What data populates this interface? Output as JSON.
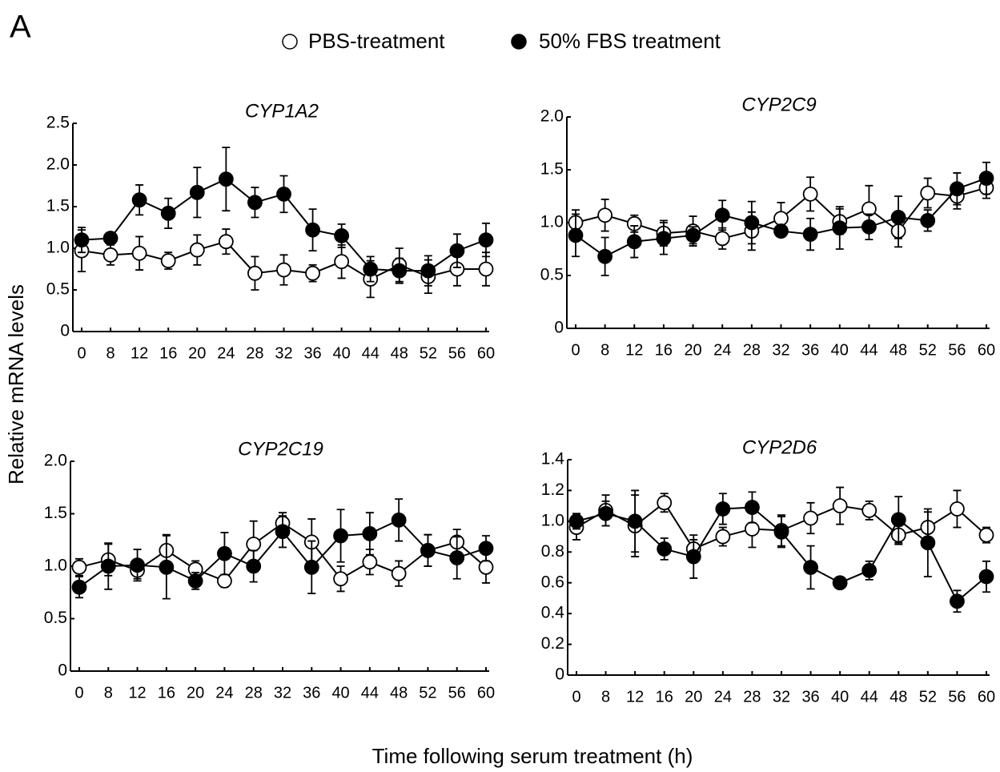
{
  "panel_label": "A",
  "y_label": "Relative mRNA levels",
  "x_label": "Time following serum treatment (h)",
  "chart_data": [
    {
      "type": "line",
      "title": "CYP1A2",
      "categories": [
        "0",
        "8",
        "12",
        "16",
        "20",
        "24",
        "28",
        "32",
        "36",
        "40",
        "44",
        "48",
        "52",
        "56",
        "60"
      ],
      "ylim": [
        0,
        2.5
      ],
      "yticks": [
        0,
        0.5,
        {
          "value": 1,
          "label": "1.0"
        },
        1.5,
        {
          "value": 2,
          "label": "2.0"
        },
        2.5
      ],
      "series": [
        {
          "name": "PBS-treatment",
          "color": "#ffffff",
          "values": [
            0.97,
            0.92,
            0.94,
            0.85,
            0.98,
            1.08,
            0.7,
            0.74,
            0.7,
            0.84,
            0.63,
            0.8,
            0.66,
            0.75,
            0.75
          ],
          "errors": [
            0.25,
            0.12,
            0.2,
            0.1,
            0.18,
            0.15,
            0.2,
            0.18,
            0.1,
            0.2,
            0.22,
            0.2,
            0.2,
            0.2,
            0.2
          ]
        },
        {
          "name": "50% FBS treatment",
          "color": "#000000",
          "values": [
            1.1,
            1.12,
            1.58,
            1.42,
            1.67,
            1.83,
            1.55,
            1.65,
            1.22,
            1.15,
            0.75,
            0.73,
            0.73,
            0.97,
            1.1
          ],
          "errors": [
            0.15,
            0.05,
            0.18,
            0.18,
            0.3,
            0.38,
            0.18,
            0.22,
            0.25,
            0.14,
            0.15,
            0.15,
            0.18,
            0.2,
            0.2
          ]
        }
      ]
    },
    {
      "type": "line",
      "title": "CYP2C9",
      "categories": [
        "0",
        "8",
        "12",
        "16",
        "20",
        "24",
        "28",
        "32",
        "36",
        "40",
        "44",
        "48",
        "52",
        "56",
        "60"
      ],
      "ylim": [
        0,
        2.0
      ],
      "yticks": [
        0,
        0.5,
        {
          "value": 1,
          "label": "1.0"
        },
        1.5,
        {
          "value": 2,
          "label": "2.0"
        }
      ],
      "series": [
        {
          "color": "#ffffff",
          "values": [
            1.0,
            1.07,
            0.99,
            0.9,
            0.92,
            0.85,
            0.92,
            1.04,
            1.27,
            1.01,
            1.13,
            0.92,
            1.28,
            1.25,
            1.33
          ],
          "errors": [
            0.12,
            0.15,
            0.08,
            0.12,
            0.14,
            0.1,
            0.18,
            0.15,
            0.16,
            0.12,
            0.22,
            0.15,
            0.14,
            0.12,
            0.1
          ]
        },
        {
          "color": "#000000",
          "values": [
            0.88,
            0.68,
            0.82,
            0.85,
            0.88,
            1.07,
            1.0,
            0.92,
            0.89,
            0.95,
            0.96,
            1.05,
            1.02,
            1.32,
            1.42
          ],
          "errors": [
            0.2,
            0.18,
            0.15,
            0.15,
            0.08,
            0.14,
            0.2,
            0.05,
            0.15,
            0.2,
            0.12,
            0.2,
            0.1,
            0.15,
            0.15
          ]
        }
      ]
    },
    {
      "type": "line",
      "title": "CYP2C19",
      "categories": [
        "0",
        "8",
        "12",
        "16",
        "20",
        "24",
        "28",
        "32",
        "36",
        "40",
        "44",
        "48",
        "52",
        "56",
        "60"
      ],
      "ylim": [
        0,
        2.0
      ],
      "yticks": [
        0,
        0.5,
        {
          "value": 1,
          "label": "1.0"
        },
        1.5,
        {
          "value": 2,
          "label": "2.0"
        }
      ],
      "series": [
        {
          "color": "#ffffff",
          "values": [
            0.99,
            1.06,
            0.96,
            1.15,
            0.97,
            0.86,
            1.21,
            1.41,
            1.23,
            0.88,
            1.04,
            0.93,
            1.15,
            1.23,
            0.99
          ],
          "errors": [
            0.08,
            0.15,
            0.08,
            0.15,
            0.08,
            0.06,
            0.22,
            0.1,
            0.22,
            0.12,
            0.12,
            0.12,
            0.15,
            0.12,
            0.15
          ]
        },
        {
          "color": "#000000",
          "values": [
            0.8,
            1.0,
            1.01,
            0.99,
            0.86,
            1.12,
            1.0,
            1.33,
            0.99,
            1.29,
            1.31,
            1.44,
            1.15,
            1.08,
            1.17
          ],
          "errors": [
            0.1,
            0.22,
            0.15,
            0.3,
            0.08,
            0.2,
            0.15,
            0.15,
            0.25,
            0.25,
            0.2,
            0.2,
            0.15,
            0.2,
            0.12
          ]
        }
      ]
    },
    {
      "type": "line",
      "title": "CYP2D6",
      "categories": [
        "0",
        "8",
        "12",
        "16",
        "20",
        "24",
        "28",
        "32",
        "36",
        "40",
        "44",
        "48",
        "52",
        "56",
        "60"
      ],
      "ylim": [
        0,
        1.4
      ],
      "yticks": [
        0,
        0.2,
        0.4,
        0.6,
        0.8,
        {
          "value": 1,
          "label": "1.0"
        },
        1.2,
        1.4
      ],
      "series": [
        {
          "color": "#ffffff",
          "values": [
            0.96,
            1.07,
            0.97,
            1.12,
            0.82,
            0.9,
            0.95,
            0.94,
            1.02,
            1.1,
            1.07,
            0.91,
            0.96,
            1.08,
            0.91
          ],
          "errors": [
            0.08,
            0.1,
            0.2,
            0.06,
            0.06,
            0.06,
            0.12,
            0.1,
            0.1,
            0.12,
            0.06,
            0.06,
            0.1,
            0.12,
            0.05
          ]
        },
        {
          "color": "#000000",
          "values": [
            1.0,
            1.05,
            1.0,
            0.82,
            0.77,
            1.08,
            1.09,
            0.93,
            0.7,
            0.6,
            0.68,
            1.01,
            0.86,
            0.48,
            0.64
          ],
          "errors": [
            0.05,
            0.08,
            0.2,
            0.07,
            0.14,
            0.1,
            0.1,
            0.1,
            0.14,
            0.02,
            0.06,
            0.15,
            0.22,
            0.07,
            0.1
          ]
        }
      ]
    }
  ]
}
